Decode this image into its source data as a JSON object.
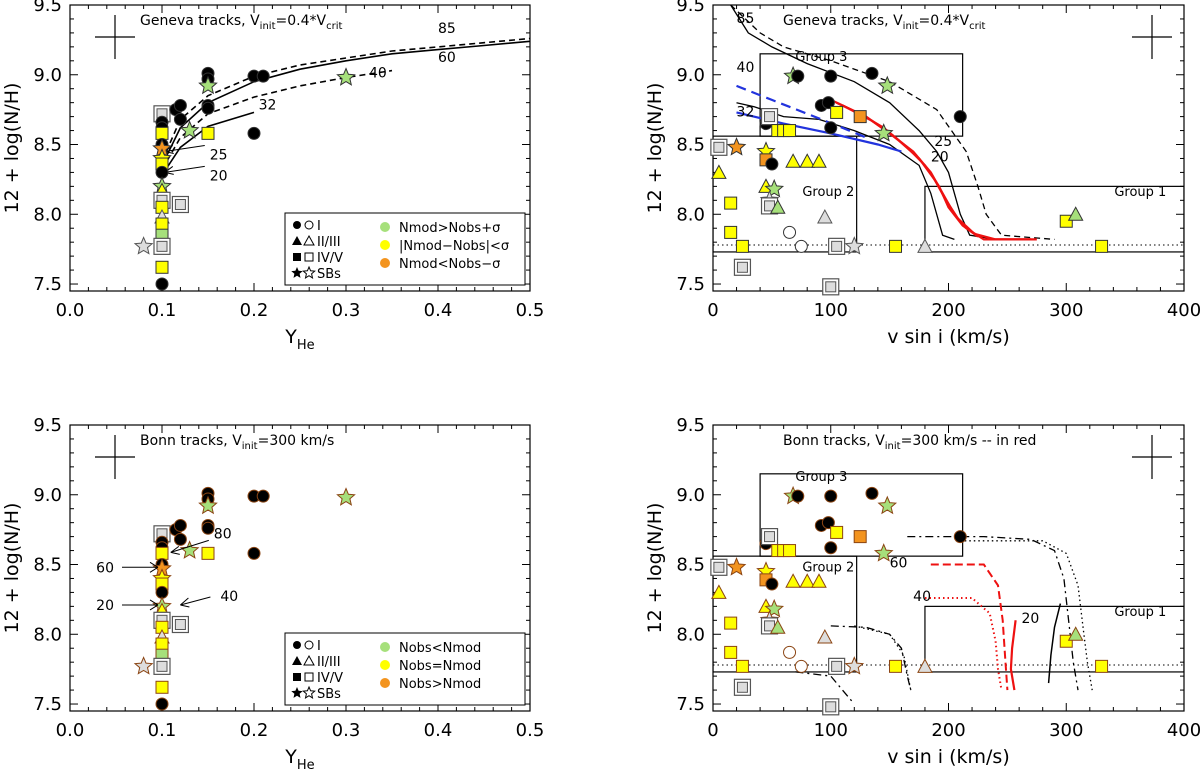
{
  "chart_data": [
    {
      "type": "scatter",
      "panel": "top-left",
      "title": "Geneva tracks, V",
      "title_sub": "init",
      "title_mid": "=0.4*V",
      "title_sub2": "crit",
      "xlabel": "Y",
      "xlabel_sub": "He",
      "ylabel": "12 + log(N/H)",
      "xlim": [
        0.0,
        0.5
      ],
      "ylim": [
        7.45,
        9.5
      ],
      "xticks": [
        "0.0",
        "0.1",
        "0.2",
        "0.3",
        "0.4",
        "0.5"
      ],
      "yticks": [
        "7.5",
        "8.0",
        "8.5",
        "9.0",
        "9.5"
      ],
      "error_cross": {
        "x": 0.045,
        "y": 9.3,
        "dx": 0.02,
        "dy": 0.15
      },
      "tracks": [
        {
          "name": "85",
          "style": "dashed",
          "points": [
            [
              0.1,
              8.38
            ],
            [
              0.12,
              8.68
            ],
            [
              0.15,
              8.85
            ],
            [
              0.2,
              8.99
            ],
            [
              0.25,
              9.07
            ],
            [
              0.3,
              9.12
            ],
            [
              0.35,
              9.17
            ],
            [
              0.4,
              9.2
            ],
            [
              0.45,
              9.23
            ],
            [
              0.5,
              9.26
            ]
          ]
        },
        {
          "name": "60",
          "style": "solid",
          "points": [
            [
              0.1,
              8.35
            ],
            [
              0.12,
              8.62
            ],
            [
              0.15,
              8.8
            ],
            [
              0.2,
              8.95
            ],
            [
              0.25,
              9.04
            ],
            [
              0.3,
              9.1
            ],
            [
              0.35,
              9.15
            ],
            [
              0.4,
              9.18
            ],
            [
              0.45,
              9.21
            ],
            [
              0.5,
              9.24
            ]
          ]
        },
        {
          "name": "40",
          "style": "dashed",
          "points": [
            [
              0.1,
              8.32
            ],
            [
              0.12,
              8.55
            ],
            [
              0.15,
              8.72
            ],
            [
              0.2,
              8.84
            ],
            [
              0.25,
              8.92
            ],
            [
              0.3,
              8.98
            ],
            [
              0.35,
              9.03
            ]
          ]
        },
        {
          "name": "32",
          "style": "solid",
          "points": [
            [
              0.1,
              8.28
            ],
            [
              0.12,
              8.48
            ],
            [
              0.15,
              8.63
            ],
            [
              0.2,
              8.73
            ]
          ]
        }
      ],
      "track_labels": [
        {
          "text": "85",
          "x": 0.4,
          "y": 9.3
        },
        {
          "text": "60",
          "x": 0.4,
          "y": 9.09
        },
        {
          "text": "40",
          "x": 0.325,
          "y": 8.98
        },
        {
          "text": "32",
          "x": 0.205,
          "y": 8.75
        }
      ],
      "arrows": [
        {
          "text": "25",
          "x": 0.103,
          "y": 8.45
        },
        {
          "text": "20",
          "x": 0.103,
          "y": 8.3
        }
      ],
      "legend": {
        "symbols": [
          {
            "shape": "circle",
            "label": "I"
          },
          {
            "shape": "triangle",
            "label": "II/III"
          },
          {
            "shape": "square",
            "label": "IV/V"
          },
          {
            "shape": "star",
            "label": "SBs"
          }
        ],
        "colors": [
          {
            "color": "#a6e07b",
            "label": "Nmod>Nobs+σ"
          },
          {
            "color": "#ffff00",
            "label": "|Nmod−Nobs|<σ"
          },
          {
            "color": "#f3941f",
            "label": "Nmod<Nobs−σ"
          }
        ]
      },
      "points": [
        {
          "x": 0.1,
          "y": 8.72,
          "s": "sq",
          "c": "box"
        },
        {
          "x": 0.1,
          "y": 8.66,
          "s": "ci",
          "c": "g"
        },
        {
          "x": 0.1,
          "y": 8.62,
          "s": "ci",
          "c": "g"
        },
        {
          "x": 0.1,
          "y": 8.58,
          "s": "sq",
          "c": "y"
        },
        {
          "x": 0.1,
          "y": 8.5,
          "s": "ci",
          "c": "g"
        },
        {
          "x": 0.1,
          "y": 8.47,
          "s": "st",
          "c": "o"
        },
        {
          "x": 0.1,
          "y": 8.4,
          "s": "st",
          "c": "y"
        },
        {
          "x": 0.1,
          "y": 8.36,
          "s": "sq",
          "c": "y"
        },
        {
          "x": 0.1,
          "y": 8.3,
          "s": "ci",
          "c": "y"
        },
        {
          "x": 0.1,
          "y": 8.2,
          "s": "st",
          "c": "g"
        },
        {
          "x": 0.1,
          "y": 8.17,
          "s": "tr",
          "c": "y"
        },
        {
          "x": 0.1,
          "y": 8.1,
          "s": "sq",
          "c": "box"
        },
        {
          "x": 0.1,
          "y": 8.05,
          "s": "sq",
          "c": "y"
        },
        {
          "x": 0.1,
          "y": 7.98,
          "s": "tr",
          "c": "box"
        },
        {
          "x": 0.1,
          "y": 7.93,
          "s": "sq",
          "c": "y"
        },
        {
          "x": 0.1,
          "y": 7.85,
          "s": "sq",
          "c": "g"
        },
        {
          "x": 0.1,
          "y": 7.77,
          "s": "sq",
          "c": "box"
        },
        {
          "x": 0.1,
          "y": 7.62,
          "s": "sq",
          "c": "y"
        },
        {
          "x": 0.1,
          "y": 7.5,
          "s": "ci",
          "c": "g"
        },
        {
          "x": 0.08,
          "y": 7.77,
          "s": "st",
          "c": "box"
        },
        {
          "x": 0.12,
          "y": 8.07,
          "s": "sq",
          "c": "box"
        },
        {
          "x": 0.115,
          "y": 8.75,
          "s": "ci",
          "c": "g"
        },
        {
          "x": 0.12,
          "y": 8.68,
          "s": "ci",
          "c": "g"
        },
        {
          "x": 0.12,
          "y": 8.78,
          "s": "ci",
          "c": "g"
        },
        {
          "x": 0.13,
          "y": 8.6,
          "s": "st",
          "c": "g"
        },
        {
          "x": 0.15,
          "y": 8.58,
          "s": "sq",
          "c": "y"
        },
        {
          "x": 0.15,
          "y": 9.01,
          "s": "ci",
          "c": "g"
        },
        {
          "x": 0.15,
          "y": 8.97,
          "s": "ci",
          "c": "g"
        },
        {
          "x": 0.15,
          "y": 8.92,
          "s": "st",
          "c": "g"
        },
        {
          "x": 0.15,
          "y": 8.78,
          "s": "ci",
          "c": "g"
        },
        {
          "x": 0.15,
          "y": 8.76,
          "s": "ci",
          "c": "g"
        },
        {
          "x": 0.2,
          "y": 8.99,
          "s": "ci",
          "c": "g"
        },
        {
          "x": 0.21,
          "y": 8.99,
          "s": "ci",
          "c": "g"
        },
        {
          "x": 0.2,
          "y": 8.58,
          "s": "ci",
          "c": "g"
        },
        {
          "x": 0.3,
          "y": 8.98,
          "s": "st",
          "c": "g"
        }
      ]
    },
    {
      "type": "scatter",
      "panel": "top-right",
      "title": "Geneva tracks, V",
      "title_sub": "init",
      "title_mid": "=0.4*V",
      "title_sub2": "crit",
      "xlabel": "v sin i (km/s)",
      "ylabel": "12 + log(N/H)",
      "xlim": [
        0,
        400
      ],
      "ylim": [
        7.45,
        9.5
      ],
      "xticks": [
        "0",
        "100",
        "200",
        "300",
        "400"
      ],
      "yticks": [
        "7.5",
        "8.0",
        "8.5",
        "9.0",
        "9.5"
      ],
      "groups": [
        {
          "label": "Group 3",
          "x0": 40,
          "x1": 212,
          "y0": 8.56,
          "y1": 9.15
        },
        {
          "label": "Group 2",
          "x0": 0,
          "x1": 122,
          "y0": 7.73,
          "y1": 8.56
        },
        {
          "label": "Group 1",
          "x0": 180,
          "x1": 400,
          "y0": 7.73,
          "y1": 8.2
        }
      ],
      "track_labels": [
        {
          "text": "85",
          "x": 20,
          "y": 9.37
        },
        {
          "text": "40",
          "x": 20,
          "y": 9.02
        },
        {
          "text": "32",
          "x": 20,
          "y": 8.7
        },
        {
          "text": "25",
          "x": 188,
          "y": 8.49
        },
        {
          "text": "20",
          "x": 185,
          "y": 8.38
        }
      ],
      "points": [
        {
          "x": 5,
          "y": 8.48,
          "s": "sq",
          "c": "box"
        },
        {
          "x": 5,
          "y": 8.3,
          "s": "tr",
          "c": "y"
        },
        {
          "x": 15,
          "y": 8.08,
          "s": "sq",
          "c": "y"
        },
        {
          "x": 15,
          "y": 7.87,
          "s": "sq",
          "c": "y"
        },
        {
          "x": 25,
          "y": 7.62,
          "s": "sq",
          "c": "box"
        },
        {
          "x": 25,
          "y": 7.77,
          "s": "sq",
          "c": "y"
        },
        {
          "x": 20,
          "y": 8.48,
          "s": "st",
          "c": "o"
        },
        {
          "x": 45,
          "y": 8.65,
          "s": "ci",
          "c": "g"
        },
        {
          "x": 48,
          "y": 8.7,
          "s": "sq",
          "c": "box"
        },
        {
          "x": 55,
          "y": 8.6,
          "s": "sq",
          "c": "y"
        },
        {
          "x": 60,
          "y": 8.6,
          "s": "sq",
          "c": "y"
        },
        {
          "x": 45,
          "y": 8.45,
          "s": "st",
          "c": "y"
        },
        {
          "x": 45,
          "y": 8.39,
          "s": "sq",
          "c": "o"
        },
        {
          "x": 50,
          "y": 8.36,
          "s": "ci",
          "c": "y"
        },
        {
          "x": 45,
          "y": 8.2,
          "s": "tr",
          "c": "y"
        },
        {
          "x": 52,
          "y": 8.18,
          "s": "st",
          "c": "g"
        },
        {
          "x": 48,
          "y": 8.1,
          "s": "st",
          "c": "box"
        },
        {
          "x": 48,
          "y": 8.06,
          "s": "sq",
          "c": "box"
        },
        {
          "x": 55,
          "y": 8.05,
          "s": "tr",
          "c": "g"
        },
        {
          "x": 65,
          "y": 7.87,
          "s": "ci",
          "c": "w"
        },
        {
          "x": 75,
          "y": 7.77,
          "s": "ci",
          "c": "w"
        },
        {
          "x": 68,
          "y": 8.38,
          "s": "tr",
          "c": "y"
        },
        {
          "x": 80,
          "y": 8.38,
          "s": "tr",
          "c": "y"
        },
        {
          "x": 90,
          "y": 8.38,
          "s": "tr",
          "c": "y"
        },
        {
          "x": 65,
          "y": 8.6,
          "s": "sq",
          "c": "y"
        },
        {
          "x": 68,
          "y": 8.99,
          "s": "st",
          "c": "g"
        },
        {
          "x": 72,
          "y": 8.99,
          "s": "ci",
          "c": "g"
        },
        {
          "x": 100,
          "y": 8.99,
          "s": "ci",
          "c": "g"
        },
        {
          "x": 92,
          "y": 8.78,
          "s": "ci",
          "c": "g"
        },
        {
          "x": 98,
          "y": 8.8,
          "s": "ci",
          "c": "g"
        },
        {
          "x": 100,
          "y": 8.62,
          "s": "ci",
          "c": "g"
        },
        {
          "x": 105,
          "y": 8.73,
          "s": "sq",
          "c": "y"
        },
        {
          "x": 95,
          "y": 7.98,
          "s": "tr",
          "c": "box"
        },
        {
          "x": 105,
          "y": 7.77,
          "s": "sq",
          "c": "box"
        },
        {
          "x": 100,
          "y": 7.48,
          "s": "sq",
          "c": "box"
        },
        {
          "x": 120,
          "y": 7.77,
          "s": "st",
          "c": "box"
        },
        {
          "x": 135,
          "y": 9.01,
          "s": "ci",
          "c": "g"
        },
        {
          "x": 148,
          "y": 8.92,
          "s": "st",
          "c": "g"
        },
        {
          "x": 145,
          "y": 8.58,
          "s": "st",
          "c": "g"
        },
        {
          "x": 125,
          "y": 8.7,
          "s": "sq",
          "c": "o"
        },
        {
          "x": 155,
          "y": 7.77,
          "s": "sq",
          "c": "y"
        },
        {
          "x": 210,
          "y": 8.7,
          "s": "ci",
          "c": "g"
        },
        {
          "x": 180,
          "y": 7.77,
          "s": "tr",
          "c": "box"
        },
        {
          "x": 300,
          "y": 7.95,
          "s": "sq",
          "c": "y"
        },
        {
          "x": 308,
          "y": 8.0,
          "s": "tr",
          "c": "g"
        },
        {
          "x": 330,
          "y": 7.77,
          "s": "sq",
          "c": "y"
        }
      ]
    },
    {
      "type": "scatter",
      "panel": "bottom-left",
      "title": "Bonn tracks, V",
      "title_sub": "init",
      "title_mid": "=300 km/s",
      "xlabel": "Y",
      "xlabel_sub": "He",
      "ylabel": "12 + log(N/H)",
      "xlim": [
        0.0,
        0.5
      ],
      "ylim": [
        7.45,
        9.5
      ],
      "xticks": [
        "0.0",
        "0.1",
        "0.2",
        "0.3",
        "0.4",
        "0.5"
      ],
      "yticks": [
        "7.5",
        "8.0",
        "8.5",
        "9.0",
        "9.5"
      ],
      "arrows": [
        {
          "text": "80",
          "x": 0.14,
          "y": 8.63,
          "dir": "left-right"
        },
        {
          "text": "60",
          "x": 0.1,
          "y": 8.48,
          "dir": "right"
        },
        {
          "text": "40",
          "x": 0.12,
          "y": 8.21,
          "dir": "left"
        },
        {
          "text": "20",
          "x": 0.1,
          "y": 8.21,
          "dir": "right"
        }
      ],
      "legend": {
        "symbols": [
          {
            "shape": "circle",
            "label": "I"
          },
          {
            "shape": "triangle",
            "label": "II/III"
          },
          {
            "shape": "square",
            "label": "IV/V"
          },
          {
            "shape": "star",
            "label": "SBs"
          }
        ],
        "colors": [
          {
            "color": "#a6e07b",
            "label": "Nobs<Nmod"
          },
          {
            "color": "#ffff00",
            "label": "Nobs=Nmod"
          },
          {
            "color": "#f3941f",
            "label": "Nobs>Nmod"
          }
        ]
      }
    },
    {
      "type": "scatter",
      "panel": "bottom-right",
      "title": "Bonn tracks, V",
      "title_sub": "init",
      "title_mid": "=300 km/s -- in red",
      "xlabel": "v sin i (km/s)",
      "ylabel": "12 + log(N/H)",
      "xlim": [
        0,
        400
      ],
      "ylim": [
        7.45,
        9.5
      ],
      "xticks": [
        "0",
        "100",
        "200",
        "300",
        "400"
      ],
      "yticks": [
        "7.5",
        "8.0",
        "8.5",
        "9.0",
        "9.5"
      ],
      "track_labels": [
        {
          "text": "60",
          "x": 150,
          "y": 8.48
        },
        {
          "text": "40",
          "x": 170,
          "y": 8.24
        },
        {
          "text": "20",
          "x": 262,
          "y": 8.08
        }
      ]
    }
  ]
}
